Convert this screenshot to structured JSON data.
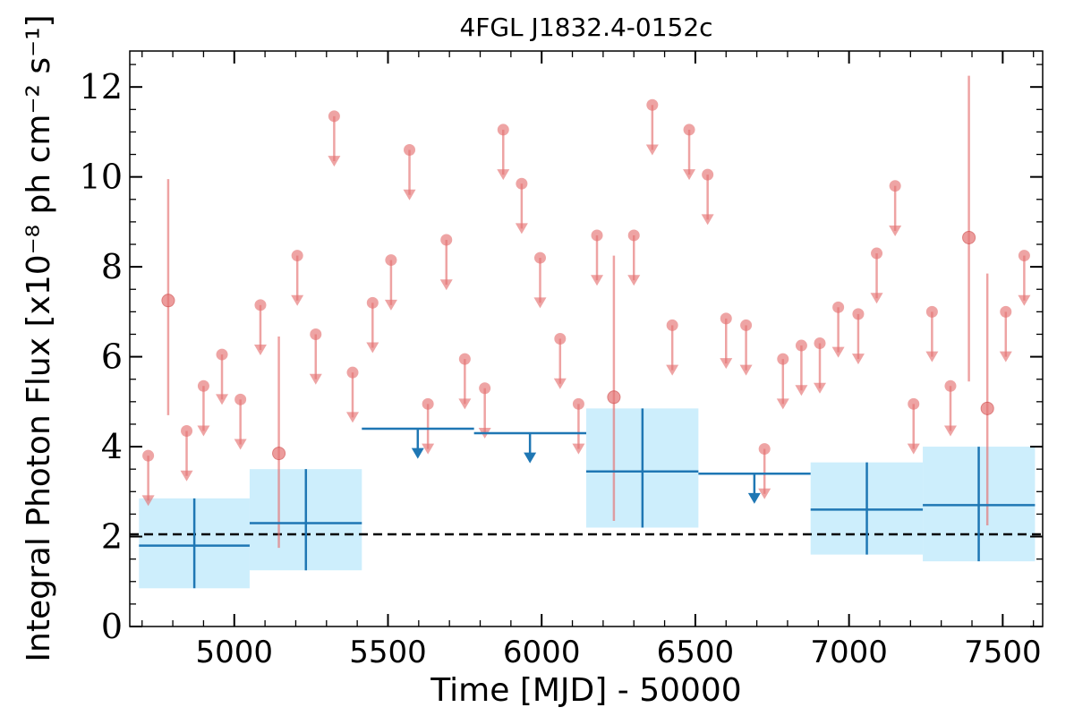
{
  "chart_data": {
    "type": "scatter",
    "title": "4FGL J1832.4-0152c",
    "xlabel": "Time [MJD] - 50000",
    "ylabel": "Integral Photon Flux [x10⁻⁸ ph cm⁻² s⁻¹]",
    "xlim": [
      4660,
      7630
    ],
    "ylim": [
      0,
      12.8
    ],
    "x_ticks": [
      "5000",
      "5500",
      "6000",
      "6500",
      "7000",
      "7500"
    ],
    "y_ticks": [
      "0",
      "2",
      "4",
      "6",
      "8",
      "10",
      "12"
    ],
    "grid": false,
    "reference_line": {
      "y": 2.05,
      "style": "dashed",
      "color": "#000000"
    },
    "colors": {
      "bins": "#1f77b4",
      "bin_fill": "#cdeefc",
      "short": "#e57373"
    },
    "series": [
      {
        "kind": "long_bin_detections",
        "points": [
          {
            "x_start": 4690,
            "x_end": 5050,
            "x": 4870,
            "y": 1.8,
            "y_low": 0.85,
            "y_high": 2.85
          },
          {
            "x_start": 5050,
            "x_end": 5415,
            "x": 5233,
            "y": 2.3,
            "y_low": 1.25,
            "y_high": 3.5
          },
          {
            "x_start": 6145,
            "x_end": 6510,
            "x": 6328,
            "y": 3.45,
            "y_low": 2.2,
            "y_high": 4.85
          },
          {
            "x_start": 6875,
            "x_end": 7240,
            "x": 7058,
            "y": 2.6,
            "y_low": 1.6,
            "y_high": 3.65
          },
          {
            "x_start": 7240,
            "x_end": 7605,
            "x": 7422,
            "y": 2.7,
            "y_low": 1.45,
            "y_high": 4.0
          }
        ]
      },
      {
        "kind": "long_bin_upper_limits",
        "points": [
          {
            "x_start": 5415,
            "x_end": 5780,
            "x": 5597,
            "y": 4.4
          },
          {
            "x_start": 5780,
            "x_end": 6145,
            "x": 5962,
            "y": 4.3
          },
          {
            "x_start": 6510,
            "x_end": 6875,
            "x": 6692,
            "y": 3.4
          }
        ]
      },
      {
        "kind": "short_bin_detections",
        "points": [
          {
            "x": 4785,
            "y": 7.25,
            "y_low": 4.7,
            "y_high": 9.95
          },
          {
            "x": 5145,
            "y": 3.85,
            "y_low": 1.75,
            "y_high": 6.45
          },
          {
            "x": 6235,
            "y": 5.1,
            "y_low": 2.35,
            "y_high": 8.25
          },
          {
            "x": 7390,
            "y": 8.65,
            "y_low": 5.45,
            "y_high": 12.25
          },
          {
            "x": 7450,
            "y": 4.85,
            "y_low": 2.25,
            "y_high": 7.85
          }
        ]
      },
      {
        "kind": "short_bin_upper_limits",
        "points": [
          {
            "x": 4720,
            "y": 3.8
          },
          {
            "x": 4845,
            "y": 4.35
          },
          {
            "x": 4900,
            "y": 5.35
          },
          {
            "x": 4960,
            "y": 6.05
          },
          {
            "x": 5020,
            "y": 5.05
          },
          {
            "x": 5085,
            "y": 7.15
          },
          {
            "x": 5205,
            "y": 8.25
          },
          {
            "x": 5265,
            "y": 6.5
          },
          {
            "x": 5325,
            "y": 11.35
          },
          {
            "x": 5385,
            "y": 5.65
          },
          {
            "x": 5450,
            "y": 7.2
          },
          {
            "x": 5510,
            "y": 8.15
          },
          {
            "x": 5570,
            "y": 10.6
          },
          {
            "x": 5630,
            "y": 4.95
          },
          {
            "x": 5690,
            "y": 8.6
          },
          {
            "x": 5750,
            "y": 5.95
          },
          {
            "x": 5815,
            "y": 5.3
          },
          {
            "x": 5875,
            "y": 11.05
          },
          {
            "x": 5935,
            "y": 9.85
          },
          {
            "x": 5995,
            "y": 8.2
          },
          {
            "x": 6060,
            "y": 6.4
          },
          {
            "x": 6120,
            "y": 4.95
          },
          {
            "x": 6180,
            "y": 8.7
          },
          {
            "x": 6300,
            "y": 8.7
          },
          {
            "x": 6360,
            "y": 11.6
          },
          {
            "x": 6425,
            "y": 6.7
          },
          {
            "x": 6480,
            "y": 11.05
          },
          {
            "x": 6540,
            "y": 10.05
          },
          {
            "x": 6600,
            "y": 6.85
          },
          {
            "x": 6665,
            "y": 6.7
          },
          {
            "x": 6725,
            "y": 3.95
          },
          {
            "x": 6785,
            "y": 5.95
          },
          {
            "x": 6845,
            "y": 6.25
          },
          {
            "x": 6905,
            "y": 6.3
          },
          {
            "x": 6965,
            "y": 7.1
          },
          {
            "x": 7030,
            "y": 6.95
          },
          {
            "x": 7090,
            "y": 8.3
          },
          {
            "x": 7150,
            "y": 9.8
          },
          {
            "x": 7210,
            "y": 4.95
          },
          {
            "x": 7270,
            "y": 7.0
          },
          {
            "x": 7330,
            "y": 5.35
          },
          {
            "x": 7510,
            "y": 7.0
          },
          {
            "x": 7570,
            "y": 8.25
          }
        ]
      }
    ]
  }
}
